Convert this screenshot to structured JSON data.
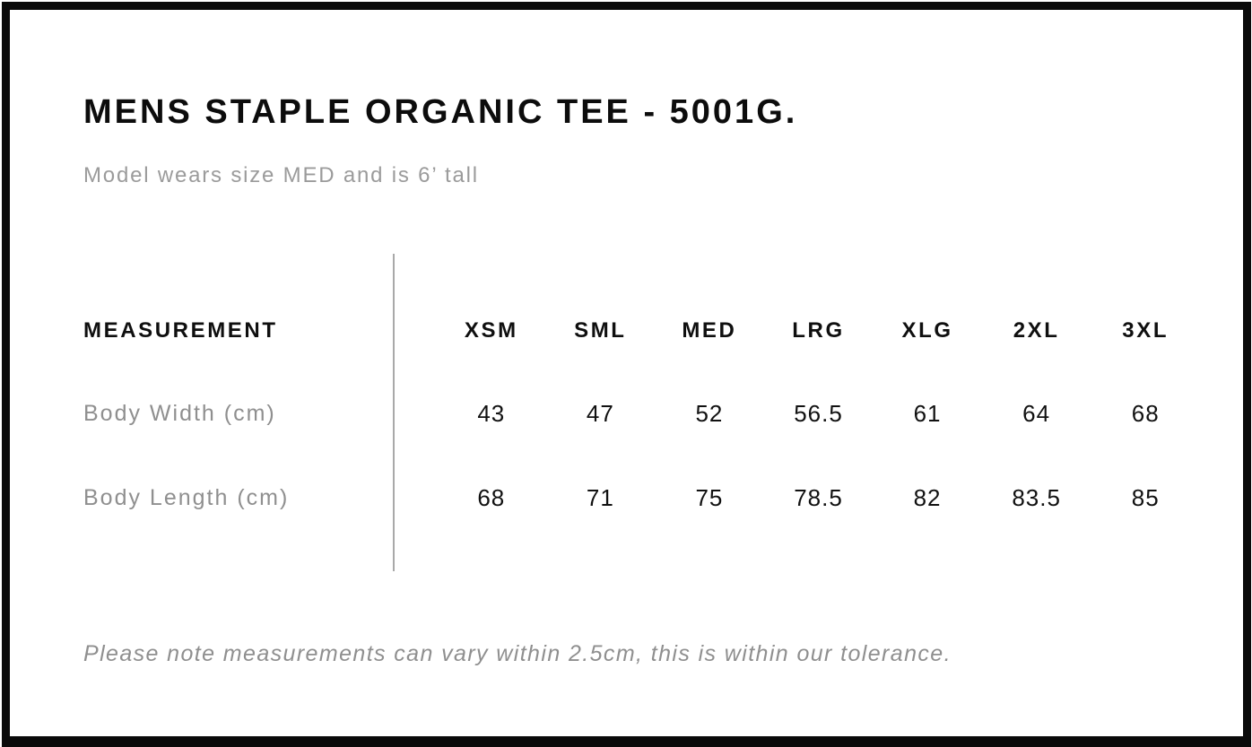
{
  "header": {
    "title": "MENS STAPLE ORGANIC TEE - 5001G.",
    "subtitle": "Model wears size MED and is 6’ tall"
  },
  "table": {
    "measurement_header": "MEASUREMENT",
    "sizes": [
      "XSM",
      "SML",
      "MED",
      "LRG",
      "XLG",
      "2XL",
      "3XL"
    ],
    "rows": [
      {
        "label": "Body Width (cm)",
        "values": [
          "43",
          "47",
          "52",
          "56.5",
          "61",
          "64",
          "68"
        ]
      },
      {
        "label": "Body Length (cm)",
        "values": [
          "68",
          "71",
          "75",
          "78.5",
          "82",
          "83.5",
          "85"
        ]
      }
    ]
  },
  "footer": {
    "note": "Please note measurements can vary within 2.5cm, this is within our tolerance."
  },
  "colors": {
    "frame": "#0a0a0a",
    "title_text": "#0c0c0c",
    "muted_text": "#8f8f8f",
    "divider": "#a9a9a9"
  }
}
